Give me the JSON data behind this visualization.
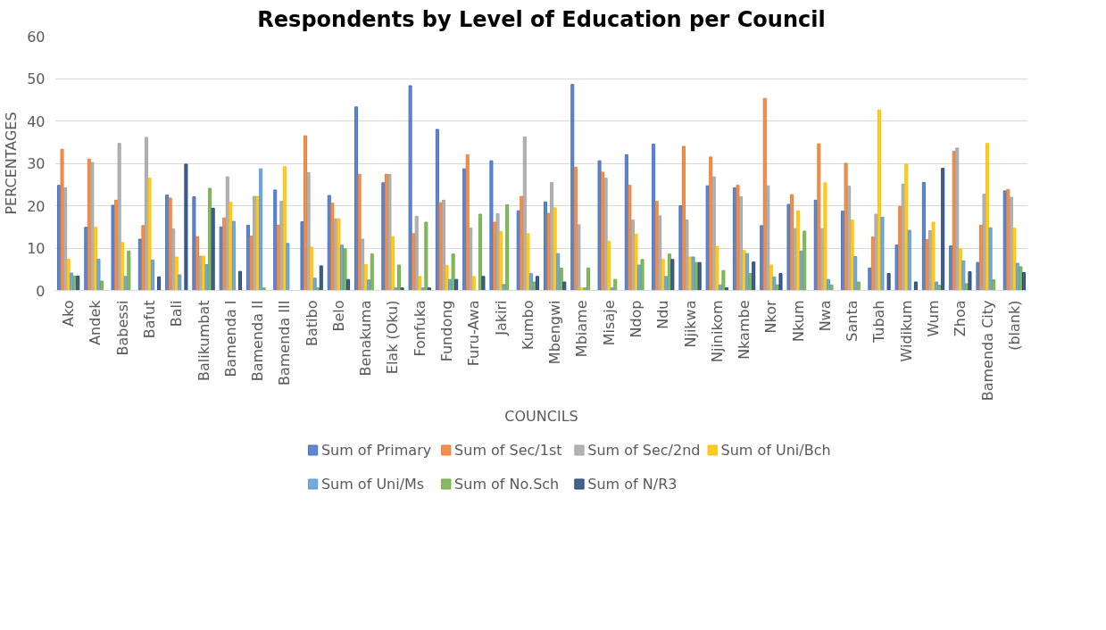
{
  "chart_data": {
    "type": "bar",
    "title": "Respondents by Level of Education per Council",
    "xlabel": "COUNCILS",
    "ylabel": "PERCENTAGES",
    "categories": [
      "Ako",
      "Andek",
      "Babessi",
      "Bafut",
      "Bali",
      "Balikumbat",
      "Bamenda I",
      "Bamenda II",
      "Bamenda III",
      "Batibo",
      "Belo",
      "Benakuma",
      "Elak (Oku)",
      "Fonfuka",
      "Fundong",
      "Furu-Awa",
      "Jakiri",
      "Kumbo",
      "Mbengwi",
      "Mbiame",
      "Misaje",
      "Ndop",
      "Ndu",
      "Njikwa",
      "Njinikom",
      "Nkambe",
      "Nkor",
      "Nkum",
      "Nwa",
      "Santa",
      "Tubah",
      "Widikum",
      "Wum",
      "Zhoa",
      "Bamenda City",
      "(blank)"
    ],
    "series": [
      {
        "name": "Sum of Primary",
        "color": "#4472c4",
        "values": [
          24.8,
          14.9,
          20.1,
          12.1,
          22.5,
          22.1,
          15,
          15.4,
          23.7,
          16.2,
          22.4,
          43.3,
          25.4,
          48.3,
          38,
          28.7,
          30.6,
          18.8,
          20.9,
          48.6,
          30.6,
          32,
          34.5,
          20,
          24.7,
          24.2,
          15.3,
          20.3,
          21.3,
          18.7,
          5.3,
          10.7,
          25.5,
          10.5,
          6.6,
          23.5
        ]
      },
      {
        "name": "Sum of Sec/1st",
        "color": "#ed7d31",
        "values": [
          33.3,
          31,
          21.3,
          15.3,
          21.8,
          12.7,
          17.1,
          12.8,
          15.4,
          36.5,
          20.6,
          27.4,
          27.4,
          13.4,
          20.7,
          32,
          16.1,
          22.2,
          18.2,
          29.1,
          27.9,
          24.8,
          21,
          34,
          31.5,
          24.8,
          45.3,
          22.6,
          34.6,
          30,
          12.6,
          19.8,
          12,
          32.8,
          15.4,
          23.8
        ]
      },
      {
        "name": "Sum of Sec/2nd",
        "color": "#a5a5a5",
        "values": [
          24.2,
          30.2,
          34.7,
          36.1,
          14.5,
          8.1,
          26.8,
          22.2,
          21,
          27.8,
          16.9,
          12.1,
          27.4,
          17.5,
          21.3,
          14.7,
          18.1,
          36.2,
          25.5,
          15.5,
          26.5,
          16.6,
          17.6,
          16.6,
          26.8,
          22.1,
          24.7,
          14.6,
          14.6,
          24.6,
          18,
          25.1,
          14.1,
          33.6,
          22.7,
          22
        ]
      },
      {
        "name": "Sum of Uni/Bch",
        "color": "#ffc000",
        "values": [
          7.4,
          14.9,
          11.3,
          26.5,
          7.9,
          8.1,
          20.8,
          22.2,
          29.2,
          10.2,
          16.9,
          6.1,
          12.7,
          3.3,
          5.9,
          3.3,
          13.9,
          13.4,
          19.5,
          0.6,
          11.6,
          13.3,
          7.3,
          7.9,
          10.4,
          9.4,
          6,
          18.8,
          25.4,
          16.6,
          42.6,
          29.8,
          16.1,
          9.9,
          34.7,
          14.7
        ]
      },
      {
        "name": "Sum of Uni/Ms",
        "color": "#5b9bd5",
        "values": [
          4.1,
          7.4,
          3.3,
          7.2,
          3.7,
          6.1,
          16.3,
          28.7,
          11.1,
          2.9,
          10.7,
          2.5,
          0.6,
          0.6,
          2.6,
          null,
          1.4,
          4,
          8.7,
          0.6,
          0.6,
          6,
          3.3,
          7.9,
          1.3,
          8.7,
          3.2,
          9.3,
          2.6,
          8,
          17.3,
          14.2,
          2,
          7,
          14.8,
          6.4
        ]
      },
      {
        "name": "Sum of No.Sch",
        "color": "#70ad47",
        "values": [
          3.4,
          2.2,
          9.3,
          null,
          null,
          24.1,
          null,
          0.6,
          null,
          0.6,
          9.8,
          8.6,
          6,
          16.1,
          8.6,
          18,
          20.2,
          2,
          5.3,
          5.3,
          2.6,
          7.3,
          8.6,
          6.6,
          4.7,
          4,
          1.3,
          14,
          1.3,
          2,
          null,
          null,
          1.2,
          1.6,
          2.5,
          5.6
        ]
      },
      {
        "name": "Sum of N/R3",
        "color": "#264478",
        "values": [
          3.4,
          null,
          null,
          3.2,
          29.8,
          19.4,
          4.5,
          null,
          null,
          5.8,
          2.6,
          null,
          0.6,
          0.6,
          2.6,
          3.3,
          null,
          3.3,
          2,
          null,
          null,
          null,
          7.3,
          6.6,
          0.6,
          6.7,
          4,
          null,
          null,
          null,
          4,
          2,
          28.8,
          4.4,
          null,
          4.2
        ]
      }
    ],
    "ylim": [
      0,
      60
    ],
    "yticks": [
      0,
      10,
      20,
      30,
      40,
      50,
      60
    ],
    "grid": "y",
    "legend": "bottom"
  }
}
